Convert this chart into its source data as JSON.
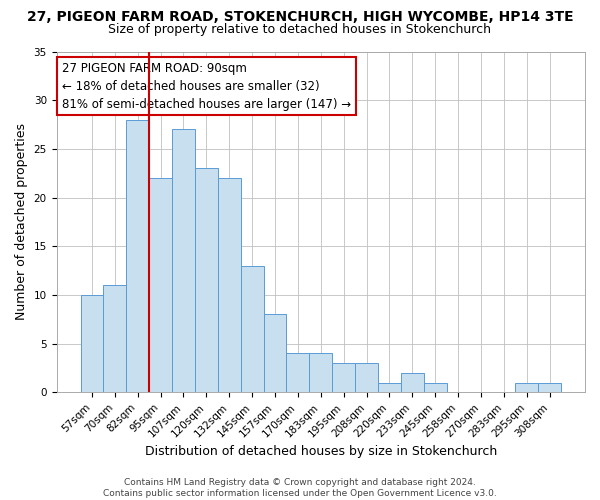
{
  "title_line1": "27, PIGEON FARM ROAD, STOKENCHURCH, HIGH WYCOMBE, HP14 3TE",
  "title_line2": "Size of property relative to detached houses in Stokenchurch",
  "xlabel": "Distribution of detached houses by size in Stokenchurch",
  "ylabel": "Number of detached properties",
  "bar_labels": [
    "57sqm",
    "70sqm",
    "82sqm",
    "95sqm",
    "107sqm",
    "120sqm",
    "132sqm",
    "145sqm",
    "157sqm",
    "170sqm",
    "183sqm",
    "195sqm",
    "208sqm",
    "220sqm",
    "233sqm",
    "245sqm",
    "258sqm",
    "270sqm",
    "283sqm",
    "295sqm",
    "308sqm"
  ],
  "bar_values": [
    10,
    11,
    28,
    22,
    27,
    23,
    22,
    13,
    8,
    4,
    4,
    3,
    3,
    1,
    2,
    1,
    0,
    0,
    0,
    1,
    1
  ],
  "bar_color": "#c8dff0",
  "bar_edge_color": "#5b9bd5",
  "highlight_line_color": "#cc0000",
  "highlight_bar_index": 2,
  "annotation_text_line1": "27 PIGEON FARM ROAD: 90sqm",
  "annotation_text_line2": "← 18% of detached houses are smaller (32)",
  "annotation_text_line3": "81% of semi-detached houses are larger (147) →",
  "annotation_box_edge_color": "#cc0000",
  "ylim": [
    0,
    35
  ],
  "yticks": [
    0,
    5,
    10,
    15,
    20,
    25,
    30,
    35
  ],
  "grid_color": "#c0c0c0",
  "background_color": "#ffffff",
  "footer_text": "Contains HM Land Registry data © Crown copyright and database right 2024.\nContains public sector information licensed under the Open Government Licence v3.0.",
  "title_fontsize": 10,
  "subtitle_fontsize": 9,
  "axis_label_fontsize": 9,
  "tick_fontsize": 7.5,
  "annotation_fontsize": 8.5,
  "footer_fontsize": 6.5
}
